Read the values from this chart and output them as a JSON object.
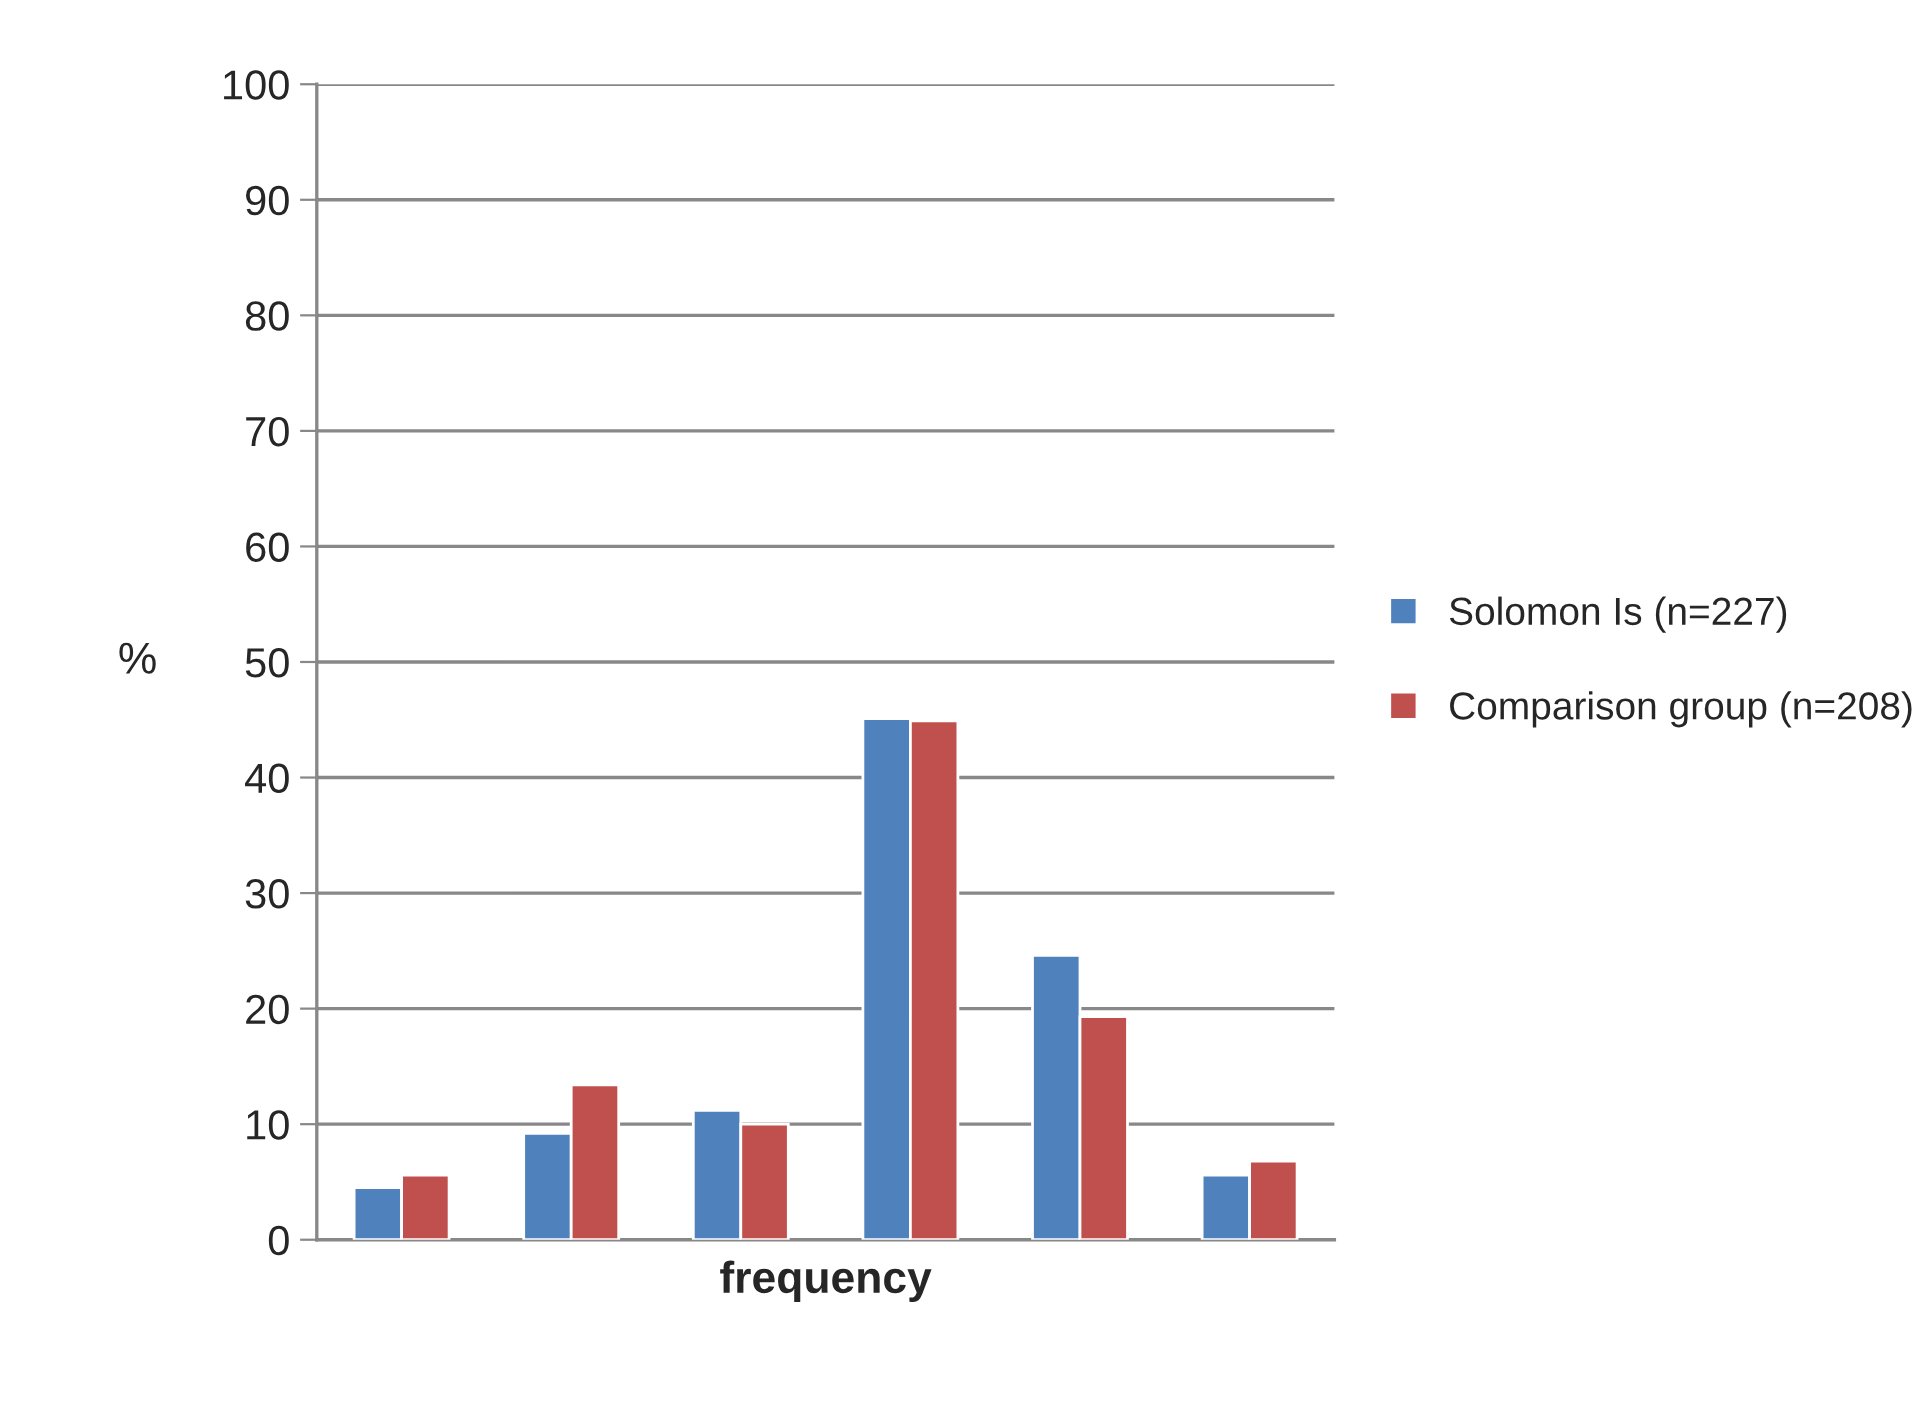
{
  "chart_data": {
    "type": "bar",
    "xlabel": "frequency",
    "ylabel": "%",
    "categories": [
      null,
      null,
      null,
      null,
      null,
      null
    ],
    "series": [
      {
        "name": "Solomon Is (n=227)",
        "color": "#4f81bd",
        "values": [
          4.5,
          9.2,
          11.2,
          45.1,
          24.6,
          5.6
        ]
      },
      {
        "name": "Comparison group (n=208)",
        "color": "#c0504d",
        "values": [
          5.6,
          13.4,
          10.0,
          44.9,
          19.3,
          6.8
        ]
      }
    ],
    "ylim": [
      0,
      100
    ],
    "yticks": [
      0,
      10,
      20,
      30,
      40,
      50,
      60,
      70,
      80,
      90,
      100
    ],
    "grid": "y",
    "legend": "right"
  }
}
